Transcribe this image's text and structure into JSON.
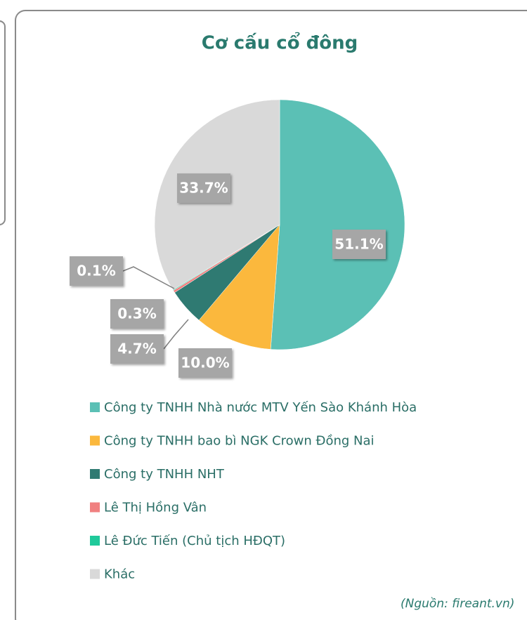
{
  "chart_data": {
    "type": "pie",
    "title": "Cơ cấu cổ đông",
    "categories": [
      "Công ty TNHH Nhà nước MTV Yến Sào Khánh Hòa",
      "Công ty TNHH bao bì NGK Crown Đồng Nai",
      "Công ty TNHH NHT",
      "Lê Thị Hồng Vân",
      "Lê Đức Tiến (Chủ tịch HĐQT)",
      "Khác"
    ],
    "values": [
      51.1,
      10.0,
      4.7,
      0.3,
      0.1,
      33.7
    ],
    "value_labels": [
      "51.1%",
      "10.0%",
      "4.7%",
      "0.3%",
      "0.1%",
      "33.7%"
    ],
    "colors": [
      "#5bc0b5",
      "#fbb83d",
      "#2f7a72",
      "#f08080",
      "#1fc99a",
      "#d9d9d9"
    ],
    "source": "(Nguồn: fireant.vn)"
  }
}
